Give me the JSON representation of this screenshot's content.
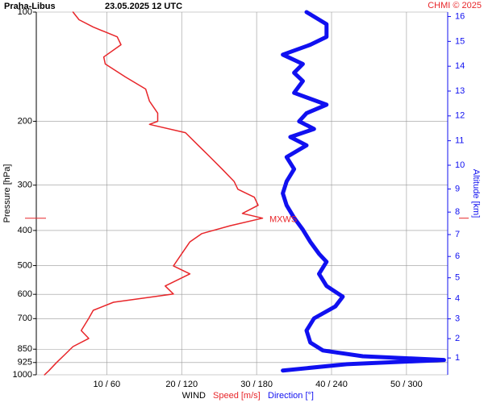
{
  "chart_data": {
    "type": "profile",
    "title": "Praha-Libus",
    "subtitle": "23.05.2025 12 UTC",
    "credit": "CHMI © 2025",
    "ylabel": "Pressure [hPa]",
    "y2label": "Altitude [km]",
    "xlabel": "WIND",
    "ylim": [
      100,
      1000
    ],
    "log_y": true,
    "yticks": [
      100,
      200,
      300,
      400,
      500,
      600,
      700,
      850,
      925,
      1000
    ],
    "xlim": [
      0.6,
      55.5
    ],
    "x2lim": [
      3.6,
      333
    ],
    "xticks": [
      {
        "value": 10,
        "label": "10 / 60"
      },
      {
        "value": 20,
        "label": "20 / 120"
      },
      {
        "value": 30,
        "label": "30 / 180"
      },
      {
        "value": 40,
        "label": "40 / 240"
      },
      {
        "value": 50,
        "label": "50 / 300"
      }
    ],
    "y2ticks": [
      1,
      2,
      3,
      4,
      5,
      6,
      7,
      8,
      9,
      10,
      11,
      12,
      13,
      14,
      15,
      16
    ],
    "grid": true,
    "annotations": [
      {
        "text": "MXWS",
        "pressure": 370,
        "color": "#e8262a"
      }
    ],
    "series": [
      {
        "name": "Speed [m/s]",
        "color": "#e8262a",
        "width": 1.5,
        "pressure": [
          100,
          105,
          110,
          117,
          123,
          133,
          139,
          151,
          163,
          176,
          190,
          200,
          204,
          215,
          233,
          251,
          271,
          293,
          308,
          324,
          341,
          359,
          370,
          388,
          408,
          430,
          464,
          501,
          527,
          569,
          599,
          631,
          664,
          699,
          755,
          794,
          836,
          880,
          925,
          973,
          1000
        ],
        "values": [
          5.5,
          6.3,
          8.2,
          11.4,
          11.9,
          9.6,
          9.8,
          12.5,
          15.2,
          15.7,
          16.8,
          16.8,
          15.7,
          20.5,
          22.2,
          23.8,
          25.4,
          27.0,
          27.5,
          29.7,
          30.2,
          28.1,
          30.8,
          26.5,
          22.7,
          21.1,
          20.0,
          18.9,
          21.1,
          17.8,
          18.9,
          10.9,
          8.2,
          7.6,
          6.6,
          7.6,
          5.5,
          4.4,
          3.3,
          2.3,
          1.7
        ]
      },
      {
        "name": "Direction [°]",
        "color": "#1010f0",
        "width": 5,
        "axis": "x2",
        "pressure": [
          100,
          108,
          117,
          123,
          131,
          139,
          147,
          155,
          167,
          180,
          190,
          200,
          210,
          221,
          233,
          251,
          271,
          293,
          316,
          341,
          369,
          398,
          430,
          464,
          488,
          527,
          569,
          609,
          648,
          699,
          755,
          815,
          857,
          889,
          910,
          935,
          973
        ],
        "values": [
          220,
          236,
          236,
          223,
          201,
          217,
          210,
          217,
          210,
          236,
          220,
          214,
          226,
          207,
          220,
          204,
          210,
          204,
          201,
          204,
          210,
          217,
          223,
          230,
          236,
          230,
          236,
          249,
          243,
          226,
          220,
          223,
          233,
          265,
          330,
          252,
          201
        ]
      }
    ]
  }
}
